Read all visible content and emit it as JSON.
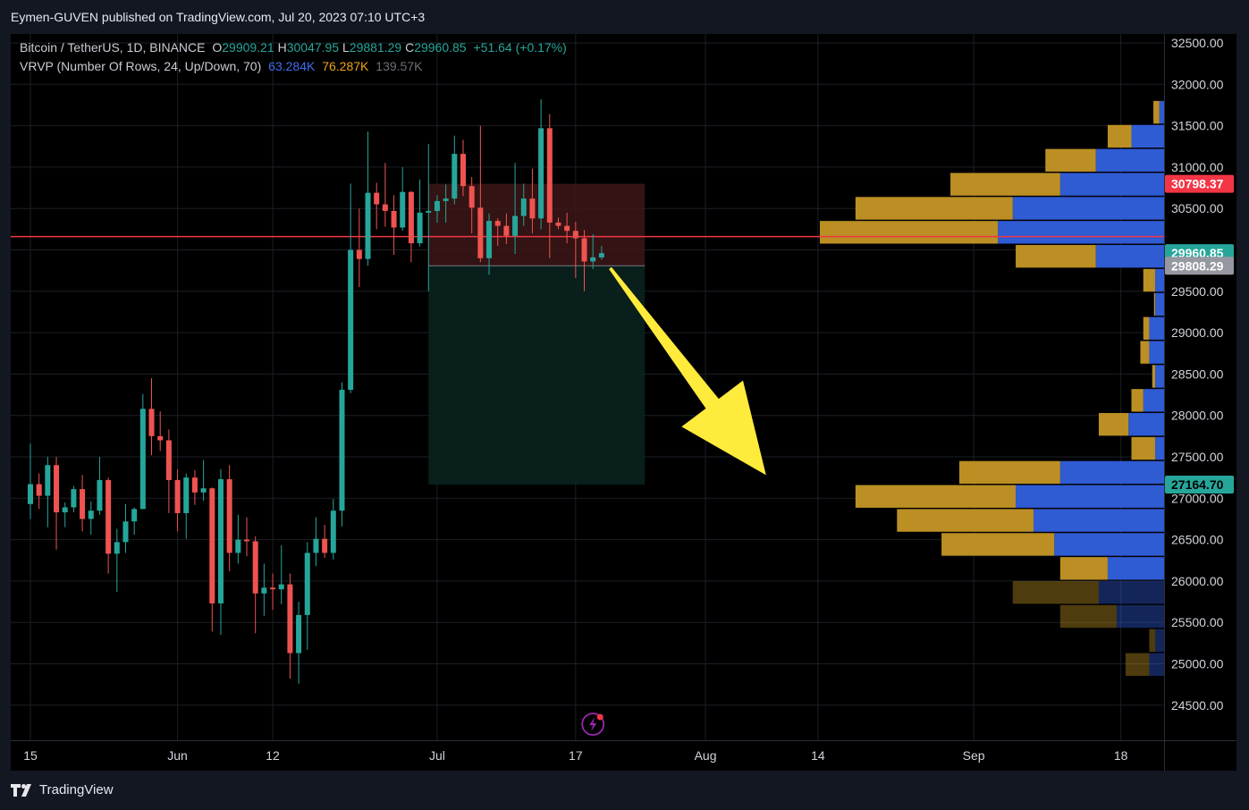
{
  "header": {
    "published_by": "Eymen-GUVEN published on TradingView.com, Jul 20, 2023 07:10 UTC+3"
  },
  "legend": {
    "symbol": "Bitcoin / TetherUS, 1D, BINANCE",
    "open_label": "O",
    "open": "29909.21",
    "high_label": "H",
    "high": "30047.95",
    "low_label": "L",
    "low": "29881.29",
    "close_label": "C",
    "close": "29960.85",
    "change": "+51.64 (+0.17%)",
    "indicator": "VRVP (Number Of Rows, 24, Up/Down, 70)",
    "vol_up": "63.284K",
    "vol_down": "76.287K",
    "vol_total": "139.57K"
  },
  "footer": {
    "brand": "TradingView",
    "logo_icon": "tradingview-logo-icon"
  },
  "colors": {
    "up": "#26a69a",
    "down": "#ef5350",
    "background": "#000000",
    "vp_up": "#2f5bd3",
    "vp_down": "#bb8f24",
    "hline": "#f23645",
    "arrow": "#ffeb3b",
    "stop_zone": "#3c1616",
    "target_zone": "#0a221e"
  },
  "chart_data": {
    "type": "candlestick",
    "y_axis": {
      "ticks": [
        "24500.00",
        "25000.00",
        "25500.00",
        "26000.00",
        "26500.00",
        "27000.00",
        "27500.00",
        "28000.00",
        "28500.00",
        "29000.00",
        "29500.00",
        "30000.00",
        "30500.00",
        "31000.00",
        "31500.00",
        "32000.00",
        "32500.00"
      ],
      "tick_values": [
        24500,
        25000,
        25500,
        26000,
        26500,
        27000,
        27500,
        28000,
        28500,
        29000,
        29500,
        30000,
        30500,
        31000,
        31500,
        32000,
        32500
      ],
      "range": [
        24000,
        32500
      ]
    },
    "x_axis": {
      "labels": [
        "15",
        "Jun",
        "12",
        "Jul",
        "17",
        "Aug",
        "14",
        "Sep",
        "18"
      ],
      "label_dates": [
        "2023-05-15",
        "2023-06-01",
        "2023-06-12",
        "2023-07-01",
        "2023-07-17",
        "2023-08-01",
        "2023-08-14",
        "2023-09-01",
        "2023-09-18"
      ],
      "range": [
        "2023-05-15",
        "2023-09-28"
      ]
    },
    "candles": [
      [
        "2023-05-15",
        26930,
        27660,
        26750,
        27170
      ],
      [
        "2023-05-16",
        27170,
        27300,
        26870,
        27030
      ],
      [
        "2023-05-17",
        27030,
        27500,
        26650,
        27400
      ],
      [
        "2023-05-18",
        27400,
        27500,
        26380,
        26830
      ],
      [
        "2023-05-19",
        26830,
        26950,
        26650,
        26890
      ],
      [
        "2023-05-20",
        26890,
        27150,
        26830,
        27110
      ],
      [
        "2023-05-21",
        27110,
        27280,
        26600,
        26750
      ],
      [
        "2023-05-22",
        26750,
        26960,
        26560,
        26850
      ],
      [
        "2023-05-23",
        26850,
        27500,
        26800,
        27220
      ],
      [
        "2023-05-24",
        27220,
        27250,
        26090,
        26330
      ],
      [
        "2023-05-25",
        26330,
        26630,
        25870,
        26470
      ],
      [
        "2023-05-26",
        26470,
        26930,
        26340,
        26720
      ],
      [
        "2023-05-27",
        26720,
        26890,
        26560,
        26870
      ],
      [
        "2023-05-28",
        26870,
        28260,
        26870,
        28080
      ],
      [
        "2023-05-29",
        28080,
        28450,
        27520,
        27750
      ],
      [
        "2023-05-30",
        27750,
        28050,
        27570,
        27700
      ],
      [
        "2023-05-31",
        27700,
        27830,
        26820,
        27220
      ],
      [
        "2023-06-01",
        27220,
        27350,
        26600,
        26820
      ],
      [
        "2023-06-02",
        26820,
        27300,
        26510,
        27250
      ],
      [
        "2023-06-03",
        27250,
        27340,
        26920,
        27070
      ],
      [
        "2023-06-04",
        27070,
        27460,
        26970,
        27120
      ],
      [
        "2023-06-05",
        27120,
        27130,
        25390,
        25730
      ],
      [
        "2023-06-06",
        25730,
        27350,
        25350,
        27230
      ],
      [
        "2023-06-07",
        27230,
        27400,
        26120,
        26340
      ],
      [
        "2023-06-08",
        26340,
        26800,
        26210,
        26500
      ],
      [
        "2023-06-09",
        26500,
        26770,
        26300,
        26480
      ],
      [
        "2023-06-10",
        26480,
        26540,
        25370,
        25850
      ],
      [
        "2023-06-11",
        25850,
        26210,
        25580,
        25920
      ],
      [
        "2023-06-12",
        25920,
        26090,
        25650,
        25900
      ],
      [
        "2023-06-13",
        25900,
        26430,
        25720,
        25960
      ],
      [
        "2023-06-14",
        25960,
        26090,
        24820,
        25130
      ],
      [
        "2023-06-15",
        25130,
        25750,
        24760,
        25590
      ],
      [
        "2023-06-16",
        25590,
        26470,
        25170,
        26340
      ],
      [
        "2023-06-17",
        26340,
        26770,
        26180,
        26510
      ],
      [
        "2023-06-18",
        26510,
        26680,
        26280,
        26340
      ],
      [
        "2023-06-19",
        26340,
        26990,
        26260,
        26850
      ],
      [
        "2023-06-20",
        26850,
        28400,
        26660,
        28310
      ],
      [
        "2023-06-21",
        28310,
        30800,
        28270,
        30000
      ],
      [
        "2023-06-22",
        30000,
        30500,
        29550,
        29890
      ],
      [
        "2023-06-23",
        29890,
        31430,
        29810,
        30690
      ],
      [
        "2023-06-24",
        30690,
        30810,
        30250,
        30550
      ],
      [
        "2023-06-25",
        30550,
        31050,
        30280,
        30470
      ],
      [
        "2023-06-26",
        30470,
        30660,
        29940,
        30270
      ],
      [
        "2023-06-27",
        30270,
        31000,
        30230,
        30700
      ],
      [
        "2023-06-28",
        30700,
        30710,
        29850,
        30080
      ],
      [
        "2023-06-29",
        30080,
        30850,
        30040,
        30450
      ],
      [
        "2023-06-30",
        30450,
        31280,
        29500,
        30470
      ],
      [
        "2023-07-01",
        30470,
        30660,
        30330,
        30590
      ],
      [
        "2023-07-02",
        30590,
        30790,
        30330,
        30620
      ],
      [
        "2023-07-03",
        30620,
        31380,
        30550,
        31160
      ],
      [
        "2023-07-04",
        31160,
        31330,
        30650,
        30770
      ],
      [
        "2023-07-05",
        30770,
        30880,
        30200,
        30510
      ],
      [
        "2023-07-06",
        30510,
        31500,
        29850,
        29900
      ],
      [
        "2023-07-07",
        29900,
        30440,
        29700,
        30350
      ],
      [
        "2023-07-08",
        30350,
        30380,
        30050,
        30290
      ],
      [
        "2023-07-09",
        30290,
        30440,
        30070,
        30170
      ],
      [
        "2023-07-10",
        30170,
        31050,
        29950,
        30410
      ],
      [
        "2023-07-11",
        30410,
        30800,
        30290,
        30620
      ],
      [
        "2023-07-12",
        30620,
        30980,
        30200,
        30380
      ],
      [
        "2023-07-13",
        30380,
        31820,
        30250,
        31470
      ],
      [
        "2023-07-14",
        31470,
        31640,
        29900,
        30330
      ],
      [
        "2023-07-15",
        30330,
        30390,
        30250,
        30290
      ],
      [
        "2023-07-16",
        30290,
        30450,
        30080,
        30230
      ],
      [
        "2023-07-17",
        30230,
        30340,
        29660,
        30140
      ],
      [
        "2023-07-18",
        30140,
        30240,
        29500,
        29860
      ],
      [
        "2023-07-19",
        29860,
        30190,
        29770,
        29910
      ],
      [
        "2023-07-20",
        29909.21,
        30047.95,
        29881.29,
        29960.85
      ]
    ],
    "volume_profile": {
      "columns": [
        "price_low",
        "price_high",
        "up_volume",
        "down_volume"
      ],
      "rows": [
        [
          24850,
          25140,
          2.5,
          4.0
        ],
        [
          25140,
          25430,
          1.5,
          1.0
        ],
        [
          25430,
          25720,
          8.0,
          9.5
        ],
        [
          25720,
          26010,
          11.0,
          14.5
        ],
        [
          26010,
          26300,
          9.5,
          8.0
        ],
        [
          26300,
          26590,
          18.5,
          19.0
        ],
        [
          26590,
          26880,
          22.0,
          23.0
        ],
        [
          26880,
          27170,
          25.0,
          27.0
        ],
        [
          27170,
          27460,
          17.5,
          17.0
        ],
        [
          27460,
          27750,
          1.5,
          4.0
        ],
        [
          27750,
          28040,
          6.0,
          5.0
        ],
        [
          28040,
          28330,
          3.5,
          2.0
        ],
        [
          28330,
          28620,
          1.5,
          0.5
        ],
        [
          28620,
          28910,
          2.5,
          1.5
        ],
        [
          28910,
          29200,
          2.5,
          1.0
        ],
        [
          29200,
          29490,
          1.5,
          0.2
        ],
        [
          29490,
          29780,
          1.5,
          2.0
        ],
        [
          29780,
          30070,
          11.5,
          13.5
        ],
        [
          30070,
          30360,
          28.0,
          30.0
        ],
        [
          30360,
          30650,
          25.5,
          26.5
        ],
        [
          30650,
          30940,
          17.5,
          18.5
        ],
        [
          30940,
          31230,
          11.5,
          8.5
        ],
        [
          31230,
          31520,
          5.5,
          4.0
        ],
        [
          31520,
          31810,
          0.8,
          1.0
        ]
      ],
      "value_area": [
        26000,
        31810
      ]
    },
    "price_labels": [
      {
        "value": 30798.37,
        "text": "30798.37",
        "color": "#f23645",
        "text_color": "#ffffff"
      },
      {
        "value": 29960.85,
        "text": "29960.85",
        "color": "#26a69a",
        "text_color": "#ffffff"
      },
      {
        "value": 29808.29,
        "text": "29808.29",
        "color": "#9598a1",
        "text_color": "#ffffff"
      },
      {
        "value": 27164.7,
        "text": "27164.70",
        "color": "#26a69a",
        "text_color": "#000000"
      }
    ],
    "horizontal_line": {
      "value": 30160
    },
    "position_tool": {
      "type": "short",
      "start": "2023-06-30",
      "end": "2023-07-25",
      "entry": 29808.29,
      "stop": 30798.37,
      "target": 27164.7
    },
    "arrow": {
      "from": {
        "date": "2023-07-21",
        "price": 29780
      },
      "to": {
        "date": "2023-08-08",
        "price": 27280
      }
    },
    "replay_marker": {
      "date": "2023-07-19"
    }
  }
}
